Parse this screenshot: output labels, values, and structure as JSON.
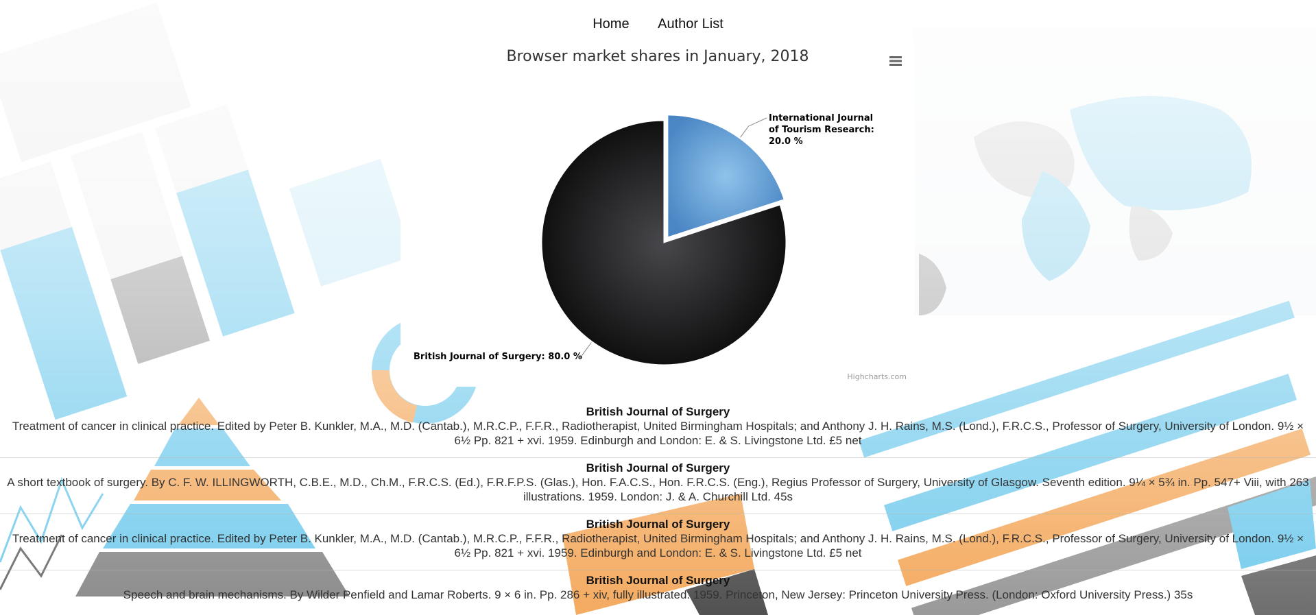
{
  "nav": {
    "items": [
      {
        "label": "Home"
      },
      {
        "label": "Author List"
      }
    ]
  },
  "chart": {
    "menu_icon": "hamburger-menu-icon",
    "credits": "Highcharts.com"
  },
  "chart_data": {
    "type": "pie",
    "title": "Browser market shares in January, 2018",
    "series": [
      {
        "name": "",
        "slices": [
          {
            "label": "International Journal of Tourism Research",
            "value": 20.0,
            "color": "#5b9bd5",
            "sliced": true
          },
          {
            "label": "British Journal of Surgery",
            "value": 80.0,
            "color": "#222226",
            "sliced": false
          }
        ]
      }
    ],
    "data_labels": [
      "International Journal of Tourism Research: 20.0 %",
      "British Journal of Surgery: 80.0 %"
    ],
    "legend": "none"
  },
  "articles": [
    {
      "journal": "British Journal of Surgery",
      "description": "Treatment of cancer in clinical practice. Edited by Peter B. Kunkler, M.A., M.D. (Cantab.), M.R.C.P., F.F.R., Radiotherapist, United Birmingham Hospitals; and Anthony J. H. Rains, M.S. (Lond.), F.R.C.S., Professor of Surgery, University of London. 9½ × 6½ Pp. 821 + xvi. 1959. Edinburgh and London: E. & S. Livingstone Ltd. £5 net"
    },
    {
      "journal": "British Journal of Surgery",
      "description": "A short textbook of surgery. By C. F. W. ILLINGWORTH, C.B.E., M.D., Ch.M., F.R.C.S. (Ed.), F.R.F.P.S. (Glas.), Hon. F.A.C.S., Hon. F.R.C.S. (Eng.), Regius Professor of Surgery, University of Glasgow. Seventh edition. 9¼ × 5¾ in. Pp. 547+ Viii, with 263 illustrations. 1959. London: J. & A. Churchill Ltd. 45s"
    },
    {
      "journal": "British Journal of Surgery",
      "description": "Treatment of cancer in clinical practice. Edited by Peter B. Kunkler, M.A., M.D. (Cantab.), M.R.C.P., F.F.R., Radiotherapist, United Birmingham Hospitals; and Anthony J. H. Rains, M.S. (Lond.), F.R.C.S., Professor of Surgery, University of London. 9½ × 6½ Pp. 821 + xvi. 1959. Edinburgh and London: E. & S. Livingstone Ltd. £5 net"
    },
    {
      "journal": "British Journal of Surgery",
      "description": "Speech and brain mechanisms. By Wilder Penfield and Lamar Roberts. 9 × 6 in. Pp. 286 + xiv, fully illustrated. 1959. Princeton, New Jersey: Princeton University Press. (London: Oxford University Press.) 35s"
    }
  ]
}
